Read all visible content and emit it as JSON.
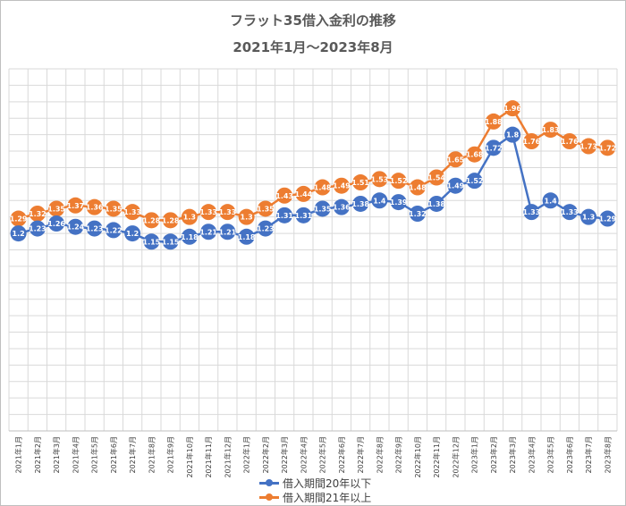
{
  "chart_data": {
    "type": "line",
    "title": "フラット35借入金利の推移",
    "subtitle": "2021年1月～2023年8月",
    "xlabel": "",
    "ylabel": "",
    "ylim": [
      0,
      2.2
    ],
    "grid": true,
    "legend_position": "bottom",
    "categories": [
      "2021年1月",
      "2021年2月",
      "2021年3月",
      "2021年4月",
      "2021年5月",
      "2021年6月",
      "2021年7月",
      "2021年8月",
      "2021年9月",
      "2021年10月",
      "2021年11月",
      "2021年12月",
      "2022年1月",
      "2022年2月",
      "2022年3月",
      "2022年4月",
      "2022年5月",
      "2022年6月",
      "2022年7月",
      "2022年8月",
      "2022年9月",
      "2022年10月",
      "2022年11月",
      "2022年12月",
      "2023年1月",
      "2023年2月",
      "2023年3月",
      "2023年4月",
      "2023年5月",
      "2023年6月",
      "2023年7月",
      "2023年8月"
    ],
    "series": [
      {
        "name": "借入期間20年以下",
        "color": "#4472c4",
        "values": [
          1.2,
          1.23,
          1.26,
          1.24,
          1.23,
          1.22,
          1.2,
          1.15,
          1.15,
          1.18,
          1.21,
          1.21,
          1.18,
          1.23,
          1.31,
          1.31,
          1.35,
          1.36,
          1.38,
          1.4,
          1.39,
          1.32,
          1.38,
          1.49,
          1.52,
          1.72,
          1.8,
          1.33,
          1.4,
          1.33,
          1.3,
          1.29
        ]
      },
      {
        "name": "借入期間21年以上",
        "color": "#ed7d31",
        "values": [
          1.29,
          1.32,
          1.35,
          1.37,
          1.36,
          1.35,
          1.33,
          1.28,
          1.28,
          1.3,
          1.33,
          1.33,
          1.3,
          1.35,
          1.43,
          1.44,
          1.48,
          1.49,
          1.51,
          1.53,
          1.52,
          1.48,
          1.54,
          1.65,
          1.68,
          1.88,
          1.96,
          1.76,
          1.83,
          1.76,
          1.73,
          1.72
        ]
      }
    ]
  }
}
